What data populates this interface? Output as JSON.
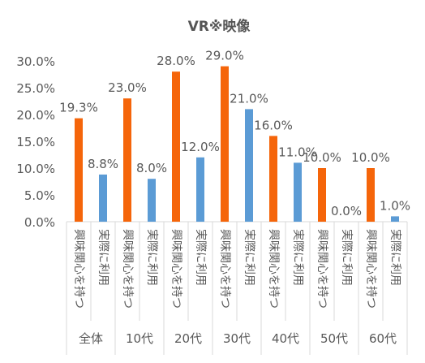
{
  "chart_data": {
    "type": "bar",
    "title": "VR※映像",
    "ylim": [
      0,
      30
    ],
    "y_ticks": [
      "0.0%",
      "5.0%",
      "10.0%",
      "15.0%",
      "20.0%",
      "25.0%",
      "30.0%"
    ],
    "groups": [
      "全体",
      "10代",
      "20代",
      "30代",
      "40代",
      "50代",
      "60代"
    ],
    "categories": [
      "興味関心を持つ",
      "実際に利用"
    ],
    "grid": false,
    "legend": "none",
    "bars": [
      {
        "group": "全体",
        "category": "興味関心を持つ",
        "value": 19.3,
        "label": "19.3%",
        "color": "#F5650A"
      },
      {
        "group": "全体",
        "category": "実際に利用",
        "value": 8.8,
        "label": "8.8%",
        "color": "#5B9BD5"
      },
      {
        "group": "10代",
        "category": "興味関心を持つ",
        "value": 23.0,
        "label": "23.0%",
        "color": "#F5650A"
      },
      {
        "group": "10代",
        "category": "実際に利用",
        "value": 8.0,
        "label": "8.0%",
        "color": "#5B9BD5"
      },
      {
        "group": "20代",
        "category": "興味関心を持つ",
        "value": 28.0,
        "label": "28.0%",
        "color": "#F5650A"
      },
      {
        "group": "20代",
        "category": "実際に利用",
        "value": 12.0,
        "label": "12.0%",
        "color": "#5B9BD5"
      },
      {
        "group": "30代",
        "category": "興味関心を持つ",
        "value": 29.0,
        "label": "29.0%",
        "color": "#F5650A"
      },
      {
        "group": "30代",
        "category": "実際に利用",
        "value": 21.0,
        "label": "21.0%",
        "color": "#5B9BD5"
      },
      {
        "group": "40代",
        "category": "興味関心を持つ",
        "value": 16.0,
        "label": "16.0%",
        "color": "#F5650A"
      },
      {
        "group": "40代",
        "category": "実際に利用",
        "value": 11.0,
        "label": "11.0%",
        "color": "#5B9BD5"
      },
      {
        "group": "50代",
        "category": "興味関心を持つ",
        "value": 10.0,
        "label": "10.0%",
        "color": "#F5650A"
      },
      {
        "group": "50代",
        "category": "実際に利用",
        "value": 0.0,
        "label": "0.0%",
        "color": "#5B9BD5"
      },
      {
        "group": "60代",
        "category": "興味関心を持つ",
        "value": 10.0,
        "label": "10.0%",
        "color": "#F5650A"
      },
      {
        "group": "60代",
        "category": "実際に利用",
        "value": 1.0,
        "label": "1.0%",
        "color": "#5B9BD5"
      }
    ]
  }
}
